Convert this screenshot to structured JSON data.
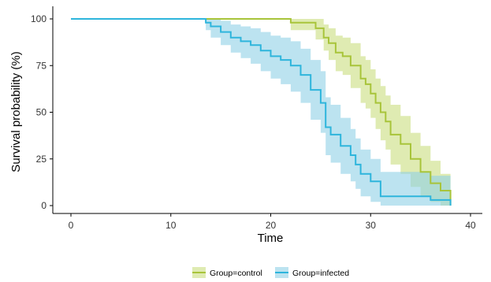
{
  "chart_data": {
    "type": "line",
    "subtype": "kaplan-meier step curves with confidence bands",
    "xlabel": "Time",
    "ylabel": "Survival probability (%)",
    "xlim": [
      0,
      40
    ],
    "ylim": [
      0,
      100
    ],
    "x_ticks": [
      0,
      10,
      20,
      30,
      40
    ],
    "y_ticks": [
      0,
      25,
      50,
      75,
      100
    ],
    "grid": false,
    "legend_position": "bottom",
    "series": [
      {
        "name": "Group=control",
        "color": "#a8c43a",
        "band_color": "#c9dd7e",
        "x": [
          0,
          13,
          22,
          23.5,
          24.5,
          25.3,
          25.8,
          26.5,
          27.2,
          28,
          29,
          29.5,
          30,
          30.5,
          31,
          31.5,
          32,
          33,
          34,
          35,
          36,
          37,
          38
        ],
        "y": [
          100,
          100,
          98,
          98,
          95,
          90,
          87,
          82,
          80,
          75,
          68,
          65,
          60,
          55,
          50,
          45,
          38,
          33,
          25,
          18,
          12,
          8,
          0
        ],
        "lower": [
          100,
          100,
          94,
          94,
          89,
          83,
          78,
          72,
          70,
          63,
          55,
          52,
          47,
          41,
          35,
          30,
          22,
          17,
          10,
          5,
          2,
          0,
          0
        ],
        "upper": [
          100,
          100,
          100,
          100,
          100,
          97,
          95,
          91,
          90,
          87,
          80,
          78,
          73,
          68,
          64,
          59,
          54,
          48,
          39,
          32,
          24,
          17,
          0
        ]
      },
      {
        "name": "Group=infected",
        "color": "#2eb5dc",
        "band_color": "#8fd0e6",
        "x": [
          0,
          13,
          13.5,
          14,
          15,
          16,
          17,
          18,
          19,
          20,
          21,
          22,
          23,
          24,
          25,
          25.5,
          26,
          27,
          28,
          28.5,
          29,
          30,
          31,
          32,
          33,
          34,
          35,
          36,
          38
        ],
        "y": [
          100,
          100,
          98,
          96,
          93,
          90,
          88,
          86,
          83,
          80,
          78,
          75,
          70,
          62,
          55,
          42,
          38,
          32,
          27,
          22,
          17,
          13,
          5,
          5,
          5,
          5,
          5,
          3,
          0
        ],
        "lower": [
          100,
          100,
          94,
          90,
          86,
          82,
          79,
          76,
          72,
          68,
          65,
          61,
          55,
          46,
          39,
          27,
          23,
          17,
          13,
          9,
          5,
          2,
          0,
          0,
          0,
          0,
          0,
          0,
          0
        ],
        "upper": [
          100,
          100,
          100,
          100,
          99,
          97,
          96,
          95,
          93,
          91,
          90,
          88,
          84,
          78,
          72,
          58,
          54,
          47,
          41,
          36,
          30,
          25,
          18,
          18,
          18,
          18,
          18,
          16,
          0
        ]
      }
    ]
  }
}
